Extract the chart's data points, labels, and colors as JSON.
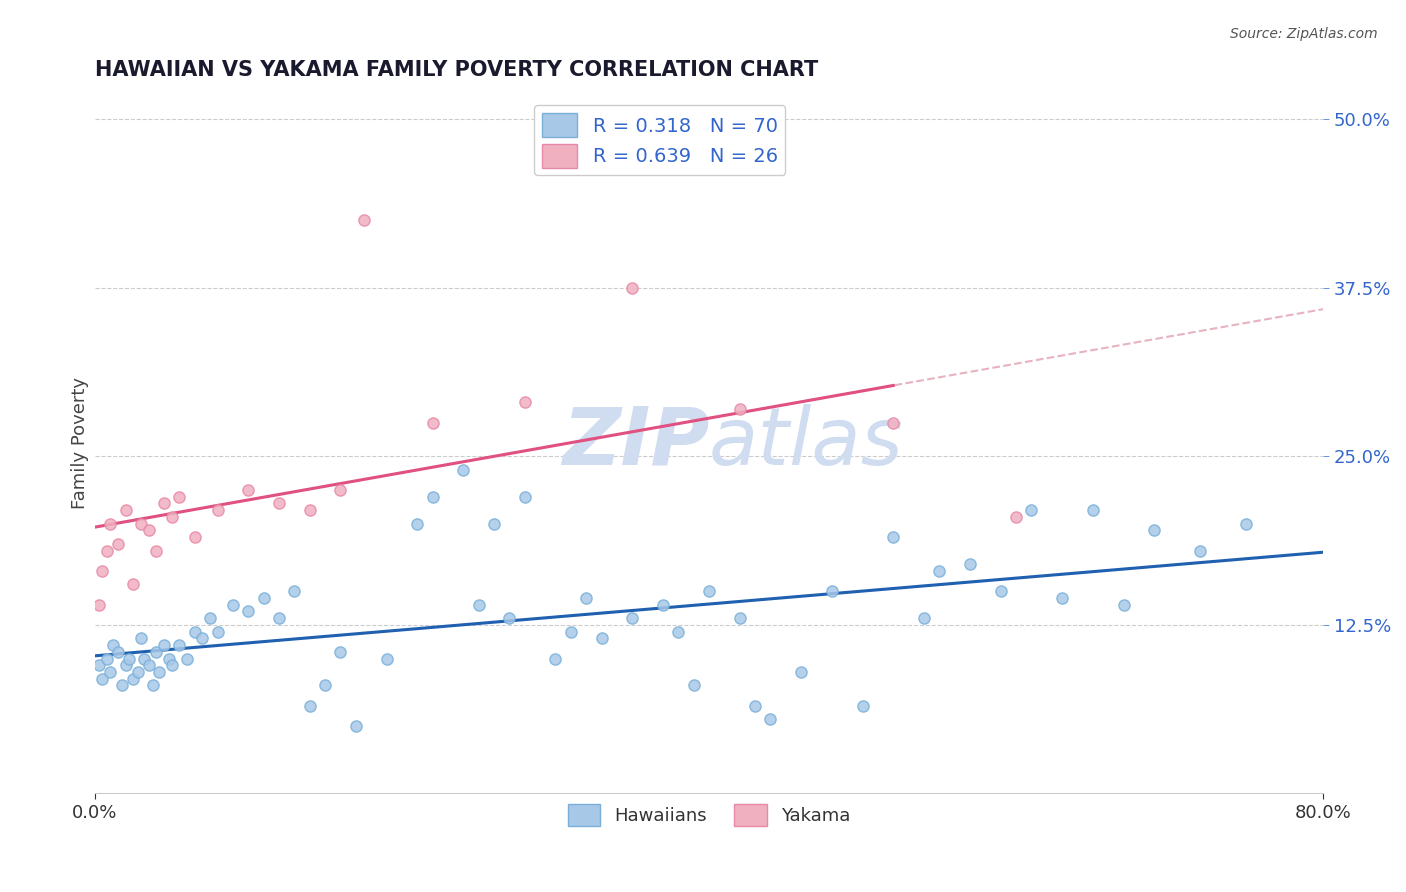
{
  "title": "HAWAIIAN VS YAKAMA FAMILY POVERTY CORRELATION CHART",
  "source": "Source: ZipAtlas.com",
  "ylabel": "Family Poverty",
  "legend_labels": [
    "Hawaiians",
    "Yakama"
  ],
  "hawaiian_R": 0.318,
  "hawaiian_N": 70,
  "yakama_R": 0.639,
  "yakama_N": 26,
  "blue_dot_color": "#a8c8e8",
  "blue_edge_color": "#7ab0d8",
  "pink_dot_color": "#f0b0c0",
  "pink_edge_color": "#e888a8",
  "blue_line_color": "#2060b0",
  "pink_line_color": "#e05080",
  "dashed_line_color": "#e0a0b0",
  "watermark_color": "#d0ddf0",
  "background_color": "#ffffff",
  "xlim": [
    0,
    80
  ],
  "ylim": [
    0,
    52
  ],
  "y_ticks": [
    12.5,
    25.0,
    37.5,
    50.0
  ],
  "x_ticks": [
    0,
    80
  ],
  "haw_x": [
    0.3,
    0.5,
    0.8,
    1.0,
    1.2,
    1.5,
    1.8,
    2.0,
    2.2,
    2.5,
    2.8,
    3.0,
    3.2,
    3.5,
    3.8,
    4.0,
    4.2,
    4.5,
    4.8,
    5.0,
    5.5,
    6.0,
    6.5,
    7.0,
    7.5,
    8.0,
    9.0,
    10.0,
    11.0,
    12.0,
    13.0,
    14.0,
    15.0,
    16.0,
    17.0,
    19.0,
    21.0,
    22.0,
    24.0,
    25.0,
    26.0,
    27.0,
    28.0,
    30.0,
    31.0,
    32.0,
    33.0,
    35.0,
    37.0,
    38.0,
    39.0,
    40.0,
    42.0,
    43.0,
    44.0,
    46.0,
    48.0,
    50.0,
    52.0,
    54.0,
    55.0,
    57.0,
    59.0,
    61.0,
    63.0,
    65.0,
    67.0,
    69.0,
    72.0,
    75.0
  ],
  "haw_y": [
    9.5,
    8.5,
    10.0,
    9.0,
    11.0,
    10.5,
    8.0,
    9.5,
    10.0,
    8.5,
    9.0,
    11.5,
    10.0,
    9.5,
    8.0,
    10.5,
    9.0,
    11.0,
    10.0,
    9.5,
    11.0,
    10.0,
    12.0,
    11.5,
    13.0,
    12.0,
    14.0,
    13.5,
    14.5,
    13.0,
    15.0,
    6.5,
    8.0,
    10.5,
    5.0,
    10.0,
    20.0,
    22.0,
    24.0,
    14.0,
    20.0,
    13.0,
    22.0,
    10.0,
    12.0,
    14.5,
    11.5,
    13.0,
    14.0,
    12.0,
    8.0,
    15.0,
    13.0,
    6.5,
    5.5,
    9.0,
    15.0,
    6.5,
    19.0,
    13.0,
    16.5,
    17.0,
    15.0,
    21.0,
    14.5,
    21.0,
    14.0,
    19.5,
    18.0,
    20.0
  ],
  "yak_x": [
    0.3,
    0.5,
    0.8,
    1.0,
    1.5,
    2.0,
    2.5,
    3.0,
    3.5,
    4.0,
    4.5,
    5.0,
    5.5,
    6.5,
    8.0,
    10.0,
    12.0,
    14.0,
    16.0,
    17.5,
    22.0,
    28.0,
    35.0,
    42.0,
    52.0,
    60.0
  ],
  "yak_y": [
    14.0,
    16.5,
    18.0,
    20.0,
    18.5,
    21.0,
    15.5,
    20.0,
    19.5,
    18.0,
    21.5,
    20.5,
    22.0,
    19.0,
    21.0,
    22.5,
    21.5,
    21.0,
    22.5,
    42.5,
    27.5,
    29.0,
    37.5,
    28.5,
    27.5,
    20.5
  ]
}
